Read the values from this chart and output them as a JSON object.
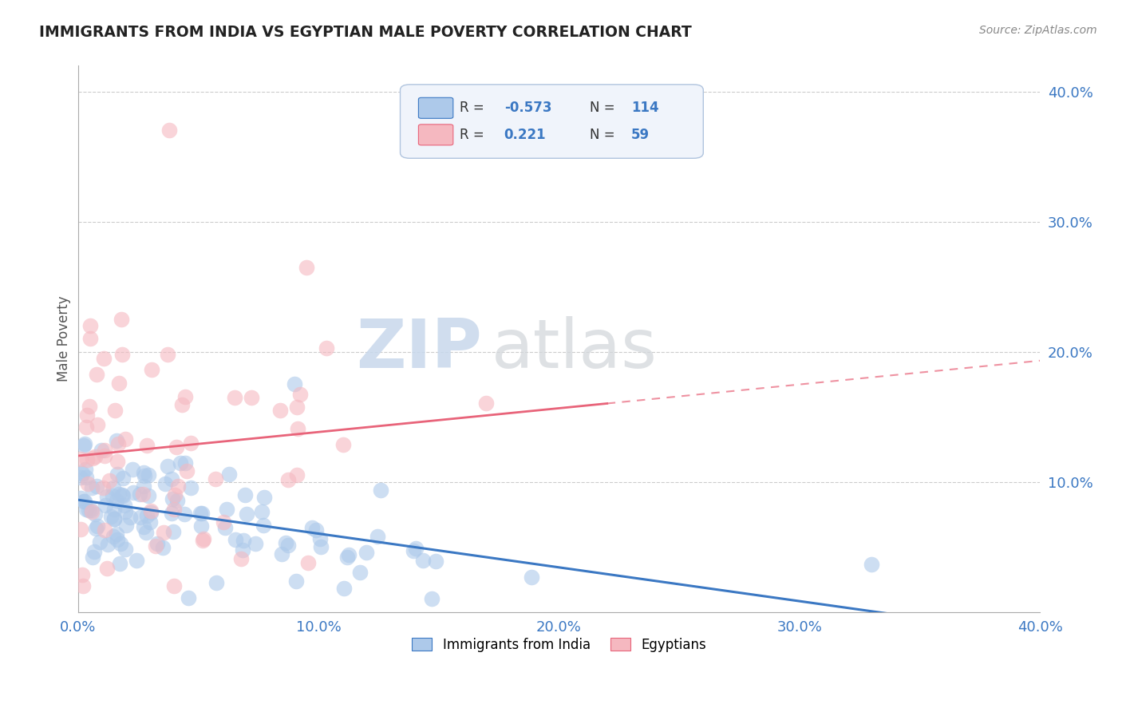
{
  "title": "IMMIGRANTS FROM INDIA VS EGYPTIAN MALE POVERTY CORRELATION CHART",
  "source": "Source: ZipAtlas.com",
  "ylabel": "Male Poverty",
  "xlim": [
    0.0,
    0.4
  ],
  "ylim": [
    0.0,
    0.42
  ],
  "xticks": [
    0.0,
    0.1,
    0.2,
    0.3,
    0.4
  ],
  "yticks": [
    0.1,
    0.2,
    0.3,
    0.4
  ],
  "ytick_labels": [
    "10.0%",
    "20.0%",
    "30.0%",
    "40.0%"
  ],
  "xtick_labels": [
    "0.0%",
    "10.0%",
    "20.0%",
    "30.0%",
    "40.0%"
  ],
  "india_fill_color": "#adc9ea",
  "egypt_fill_color": "#f5b8c0",
  "india_line_color": "#3b78c3",
  "egypt_line_color": "#e8647a",
  "india_R": -0.573,
  "india_N": 114,
  "egypt_R": 0.221,
  "egypt_N": 59,
  "background_color": "#ffffff",
  "grid_color": "#cccccc",
  "watermark_zip": "ZIP",
  "watermark_atlas": "atlas",
  "legend_box_color": "#f0f4fb",
  "legend_border_color": "#b0c4de",
  "text_color": "#333333",
  "blue_text_color": "#3b78c3"
}
